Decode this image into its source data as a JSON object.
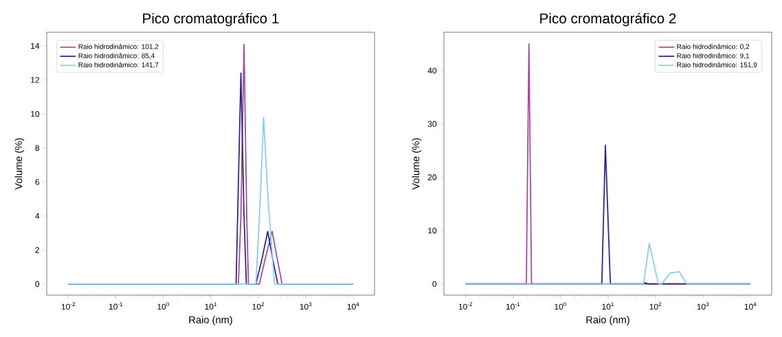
{
  "chart_data": [
    {
      "type": "line",
      "title": "Pico cromatográfico 1",
      "xlabel": "Raio (nm)",
      "ylabel": "Volume (%)",
      "log": "x",
      "legend": "top left",
      "xlim": [
        0.0035,
        28000
      ],
      "ylim": [
        -0.65,
        14.8
      ],
      "xticks": [
        {
          "value": 0.01,
          "label": "10$^{-2}$"
        },
        {
          "value": 0.1,
          "label": "10$^{-1}$"
        },
        {
          "value": 1,
          "label": "10$^{0}$"
        },
        {
          "value": 10,
          "label": "10$^{1}$"
        },
        {
          "value": 100,
          "label": "10$^{2}$"
        },
        {
          "value": 1000,
          "label": "10$^{3}$"
        },
        {
          "value": 10000,
          "label": "10$^{4}$"
        }
      ],
      "yticks": [
        0,
        2,
        4,
        6,
        8,
        10,
        12,
        14
      ],
      "series": [
        {
          "name": "Raio hidrodinâmico: 101,2",
          "color": "#a8449c",
          "x": [
            0.01,
            38,
            43,
            50,
            57,
            62,
            105,
            140,
            195,
            250,
            316,
            10000
          ],
          "values": [
            0,
            0,
            4,
            14.1,
            4,
            0,
            0,
            1.5,
            3.1,
            1.5,
            0,
            0
          ]
        },
        {
          "name": "Raio hidrodinâmico: 85,4",
          "color": "#2e1f8c",
          "x": [
            0.01,
            34,
            43,
            50,
            56,
            89,
            120,
            158,
            200,
            257,
            10000
          ],
          "values": [
            0,
            0,
            12.4,
            4,
            0,
            0,
            1.5,
            3.1,
            1.5,
            0,
            0
          ]
        },
        {
          "name": "Raio hidrodinâmico: 141,7",
          "color": "#88ccee",
          "x": [
            0.01,
            89,
            110,
            129,
            160,
            219,
            10000
          ],
          "values": [
            0,
            0,
            5,
            9.8,
            5,
            0,
            0
          ]
        }
      ]
    },
    {
      "type": "line",
      "title": "Pico cromatográfico 2",
      "xlabel": "Raio (nm)",
      "ylabel": "Volume (%)",
      "log": "x",
      "legend": "top right",
      "xlim": [
        0.0035,
        28000
      ],
      "ylim": [
        -2.1,
        47.2
      ],
      "xticks": [
        {
          "value": 0.01,
          "label": "10$^{-2}$"
        },
        {
          "value": 0.1,
          "label": "10$^{-1}$"
        },
        {
          "value": 1,
          "label": "10$^{0}$"
        },
        {
          "value": 10,
          "label": "10$^{1}$"
        },
        {
          "value": 100,
          "label": "10$^{2}$"
        },
        {
          "value": 1000,
          "label": "10$^{3}$"
        },
        {
          "value": 10000,
          "label": "10$^{4}$"
        }
      ],
      "yticks": [
        0,
        10,
        20,
        30,
        40
      ],
      "series": [
        {
          "name": "Raio hidrodinâmico: 0,2",
          "color": "#a8449c",
          "x": [
            0.01,
            0.19,
            0.216,
            0.245,
            10000
          ],
          "values": [
            0,
            0,
            45,
            0,
            0
          ]
        },
        {
          "name": "Raio hidrodinâmico: 9,1",
          "color": "#2e1f8c",
          "x": [
            0.01,
            7.4,
            8.8,
            11.2,
            55,
            60,
            70,
            457,
            10000
          ],
          "values": [
            0,
            0,
            26,
            0,
            0,
            0.2,
            0,
            0,
            0
          ]
        },
        {
          "name": "Raio hidrodinâmico: 151,9",
          "color": "#88ccee",
          "x": [
            0.01,
            56,
            74,
            115,
            135,
            200,
            316,
            457,
            10000
          ],
          "values": [
            0,
            0,
            7.6,
            0,
            0,
            2,
            2.3,
            0,
            0
          ]
        }
      ]
    }
  ]
}
